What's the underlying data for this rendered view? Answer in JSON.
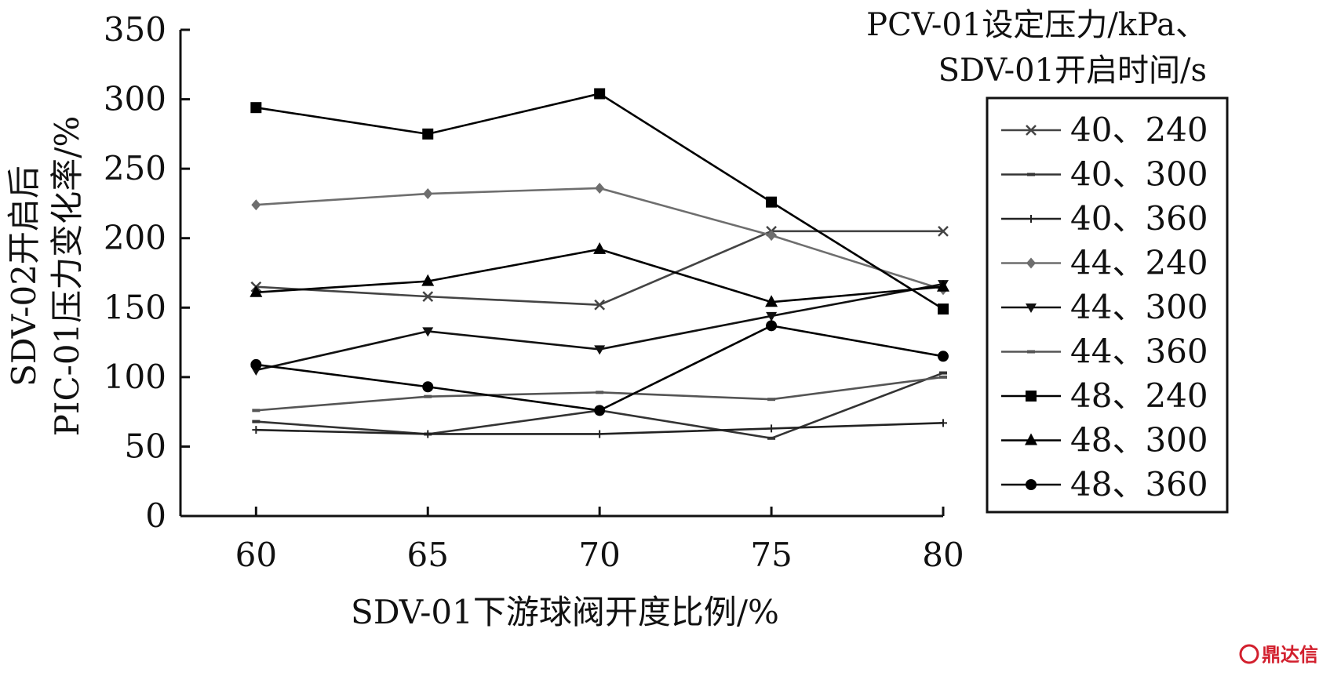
{
  "chart_data": {
    "type": "line",
    "title": "",
    "xlabel": "SDV-01下游球阀开度比例/%",
    "ylabel_line1": "SDV-02开启后",
    "ylabel_line2": "PIC-01压力变化率/%",
    "x": [
      60,
      65,
      70,
      75,
      80
    ],
    "xlim": [
      57.8,
      80
    ],
    "ylim": [
      0,
      350
    ],
    "yticks": [
      0,
      50,
      100,
      150,
      200,
      250,
      300,
      350
    ],
    "xticks": [
      60,
      65,
      70,
      75,
      80
    ],
    "grid": false,
    "legend_title_line1": "PCV-01设定压力/kPa、",
    "legend_title_line2": "SDV-01开启时间/s",
    "legend_position": "right",
    "series": [
      {
        "name": "40、240",
        "marker": "x",
        "color": "#444444",
        "values": [
          165,
          158,
          152,
          205,
          205
        ]
      },
      {
        "name": "40、300",
        "marker": "dash",
        "color": "#333333",
        "values": [
          68,
          59,
          76,
          56,
          103
        ]
      },
      {
        "name": "40、360",
        "marker": "plus",
        "color": "#222222",
        "values": [
          62,
          59,
          59,
          63,
          67
        ]
      },
      {
        "name": "44、240",
        "marker": "diamond",
        "color": "#6e6e6e",
        "values": [
          224,
          232,
          236,
          202,
          163
        ]
      },
      {
        "name": "44、300",
        "marker": "star",
        "color": "#111111",
        "values": [
          105,
          133,
          120,
          144,
          167
        ]
      },
      {
        "name": "44、360",
        "marker": "minus",
        "color": "#555555",
        "values": [
          76,
          86,
          89,
          84,
          100
        ]
      },
      {
        "name": "48、240",
        "marker": "square",
        "color": "#000000",
        "values": [
          294,
          275,
          304,
          226,
          149
        ]
      },
      {
        "name": "48、300",
        "marker": "triangle",
        "color": "#000000",
        "values": [
          161,
          169,
          192,
          154,
          165
        ]
      },
      {
        "name": "48、360",
        "marker": "circle",
        "color": "#000000",
        "values": [
          109,
          93,
          76,
          137,
          115
        ]
      }
    ]
  },
  "watermark": "鼎达信"
}
